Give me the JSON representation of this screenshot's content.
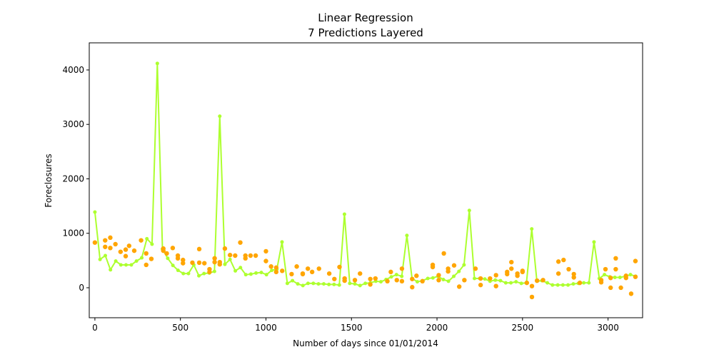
{
  "chart_data": {
    "type": "line",
    "title": "Linear Regression",
    "subtitle": "7 Predictions Layered",
    "x_label": "Number of days since 01/01/2014",
    "y_label": "Foreclosures",
    "xlim": [
      -33,
      3202
    ],
    "ylim": [
      -551,
      4498
    ],
    "xticks": [
      0,
      500,
      1000,
      1500,
      2000,
      2500,
      3000
    ],
    "yticks": [
      0,
      1000,
      2000,
      3000,
      4000
    ],
    "series": [
      {
        "type": "line",
        "color": "#adff2f",
        "x": [
          0,
          30,
          61,
          91,
          122,
          152,
          182,
          213,
          243,
          274,
          304,
          334,
          365,
          395,
          426,
          456,
          486,
          517,
          547,
          578,
          608,
          638,
          669,
          699,
          730,
          760,
          790,
          821,
          851,
          882,
          912,
          942,
          973,
          1003,
          1034,
          1064,
          1094,
          1125,
          1155,
          1186,
          1216,
          1246,
          1277,
          1307,
          1338,
          1368,
          1398,
          1429,
          1459,
          1490,
          1520,
          1550,
          1581,
          1611,
          1642,
          1672,
          1702,
          1733,
          1763,
          1794,
          1824,
          1854,
          1885,
          1915,
          1946,
          1976,
          2006,
          2037,
          2067,
          2098,
          2128,
          2158,
          2189,
          2219,
          2250,
          2280,
          2310,
          2341,
          2371,
          2402,
          2432,
          2462,
          2493,
          2523,
          2554,
          2584,
          2614,
          2645,
          2675,
          2706,
          2736,
          2766,
          2797,
          2827,
          2858,
          2888,
          2918,
          2949,
          2979,
          3010,
          3040,
          3070,
          3101,
          3131,
          3162
        ],
        "values": [
          1390,
          520,
          590,
          330,
          490,
          420,
          420,
          420,
          490,
          550,
          900,
          800,
          4120,
          710,
          540,
          410,
          320,
          260,
          260,
          420,
          220,
          260,
          270,
          300,
          3150,
          430,
          520,
          310,
          370,
          240,
          250,
          270,
          280,
          240,
          320,
          340,
          840,
          80,
          130,
          70,
          40,
          80,
          80,
          70,
          70,
          60,
          60,
          50,
          1350,
          80,
          70,
          40,
          80,
          90,
          120,
          110,
          150,
          200,
          240,
          210,
          960,
          170,
          110,
          130,
          170,
          180,
          210,
          150,
          120,
          210,
          300,
          420,
          1420,
          170,
          170,
          160,
          120,
          140,
          130,
          90,
          90,
          110,
          80,
          90,
          1080,
          120,
          130,
          90,
          50,
          50,
          50,
          50,
          70,
          80,
          90,
          90,
          840,
          170,
          240,
          200,
          190,
          190,
          210,
          240,
          210
        ]
      },
      {
        "type": "scatter",
        "color": "#ffa500",
        "x": [
          0,
          60,
          60,
          90,
          90,
          120,
          150,
          180,
          180,
          200,
          230,
          270,
          300,
          300,
          330,
          400,
          400,
          420,
          455,
          485,
          485,
          515,
          515,
          570,
          610,
          610,
          640,
          670,
          670,
          700,
          700,
          730,
          730,
          760,
          790,
          820,
          850,
          880,
          880,
          910,
          940,
          1000,
          1000,
          1030,
          1060,
          1060,
          1095,
          1150,
          1180,
          1215,
          1215,
          1245,
          1270,
          1310,
          1370,
          1400,
          1430,
          1460,
          1460,
          1520,
          1550,
          1610,
          1610,
          1640,
          1710,
          1730,
          1765,
          1795,
          1795,
          1855,
          1855,
          1880,
          1915,
          1975,
          1975,
          2010,
          2010,
          2040,
          2065,
          2065,
          2100,
          2130,
          2160,
          2225,
          2255,
          2255,
          2310,
          2345,
          2345,
          2410,
          2410,
          2435,
          2435,
          2470,
          2470,
          2500,
          2500,
          2525,
          2555,
          2555,
          2585,
          2620,
          2710,
          2710,
          2740,
          2770,
          2800,
          2800,
          2835,
          2960,
          2960,
          2985,
          3015,
          3015,
          3045,
          3045,
          3075,
          3105,
          3105,
          3135,
          3160,
          3160
        ],
        "values": [
          830,
          870,
          750,
          920,
          730,
          800,
          660,
          700,
          580,
          770,
          680,
          870,
          630,
          420,
          530,
          720,
          680,
          630,
          730,
          590,
          540,
          510,
          450,
          460,
          710,
          460,
          450,
          340,
          290,
          540,
          470,
          470,
          430,
          720,
          600,
          590,
          830,
          590,
          540,
          590,
          590,
          670,
          490,
          390,
          370,
          290,
          310,
          250,
          390,
          250,
          260,
          350,
          290,
          350,
          260,
          160,
          380,
          130,
          170,
          140,
          260,
          60,
          160,
          170,
          120,
          290,
          140,
          350,
          120,
          10,
          160,
          220,
          120,
          420,
          380,
          230,
          140,
          630,
          350,
          300,
          410,
          20,
          140,
          350,
          50,
          170,
          170,
          230,
          30,
          290,
          250,
          470,
          350,
          220,
          260,
          310,
          290,
          90,
          30,
          -170,
          130,
          140,
          480,
          260,
          510,
          340,
          250,
          190,
          90,
          140,
          100,
          340,
          180,
          0,
          340,
          540,
          0,
          180,
          220,
          -110,
          200,
          490
        ]
      }
    ]
  }
}
